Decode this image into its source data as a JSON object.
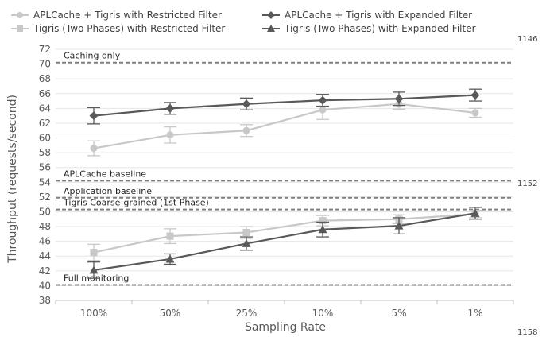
{
  "line_numbers": [
    "1146",
    "1152",
    "1158"
  ],
  "chart_data": {
    "type": "line",
    "xlabel": "Sampling Rate",
    "ylabel": "Throughput (requests/second)",
    "categories": [
      "100%",
      "50%",
      "25%",
      "10%",
      "5%",
      "1%"
    ],
    "ylim": [
      38,
      72
    ],
    "yticks": [
      38,
      40,
      42,
      44,
      46,
      48,
      50,
      52,
      54,
      56,
      58,
      60,
      62,
      64,
      66,
      68,
      70,
      72
    ],
    "grid": true,
    "legend_position": "top",
    "series": [
      {
        "name": "APLCache + Tigris with Restricted Filter",
        "marker": "circle",
        "color": "#c8c8c8",
        "values": [
          58.6,
          60.4,
          61.0,
          63.8,
          64.6,
          63.4
        ],
        "errors": [
          1.0,
          1.1,
          0.8,
          1.3,
          0.7,
          0.6
        ]
      },
      {
        "name": "APLCache + Tigris with Expanded Filter",
        "marker": "diamond",
        "color": "#595959",
        "values": [
          63.0,
          64.0,
          64.6,
          65.1,
          65.3,
          65.8
        ],
        "errors": [
          1.1,
          0.8,
          0.8,
          0.8,
          0.9,
          0.8
        ]
      },
      {
        "name": "Tigris (Two Phases) with Restricted Filter",
        "marker": "square",
        "color": "#c8c8c8",
        "values": [
          44.5,
          46.7,
          47.2,
          48.8,
          49.0,
          49.7
        ],
        "errors": [
          1.1,
          1.0,
          0.8,
          0.7,
          0.6,
          0.5
        ]
      },
      {
        "name": "Tigris (Two Phases) with Expanded Filter",
        "marker": "triangle",
        "color": "#595959",
        "values": [
          42.1,
          43.6,
          45.7,
          47.6,
          48.1,
          49.8
        ],
        "errors": [
          1.1,
          0.7,
          0.9,
          1.0,
          1.1,
          0.8
        ]
      }
    ],
    "reference_lines": [
      {
        "label": "Caching only",
        "value": 70.2
      },
      {
        "label": "APLCache baseline",
        "value": 54.2
      },
      {
        "label": "Application baseline",
        "value": 51.9
      },
      {
        "label": "Tigris Coarse-grained (1st Phase)",
        "value": 50.3
      },
      {
        "label": "Full monitoring",
        "value": 40.1
      }
    ]
  }
}
